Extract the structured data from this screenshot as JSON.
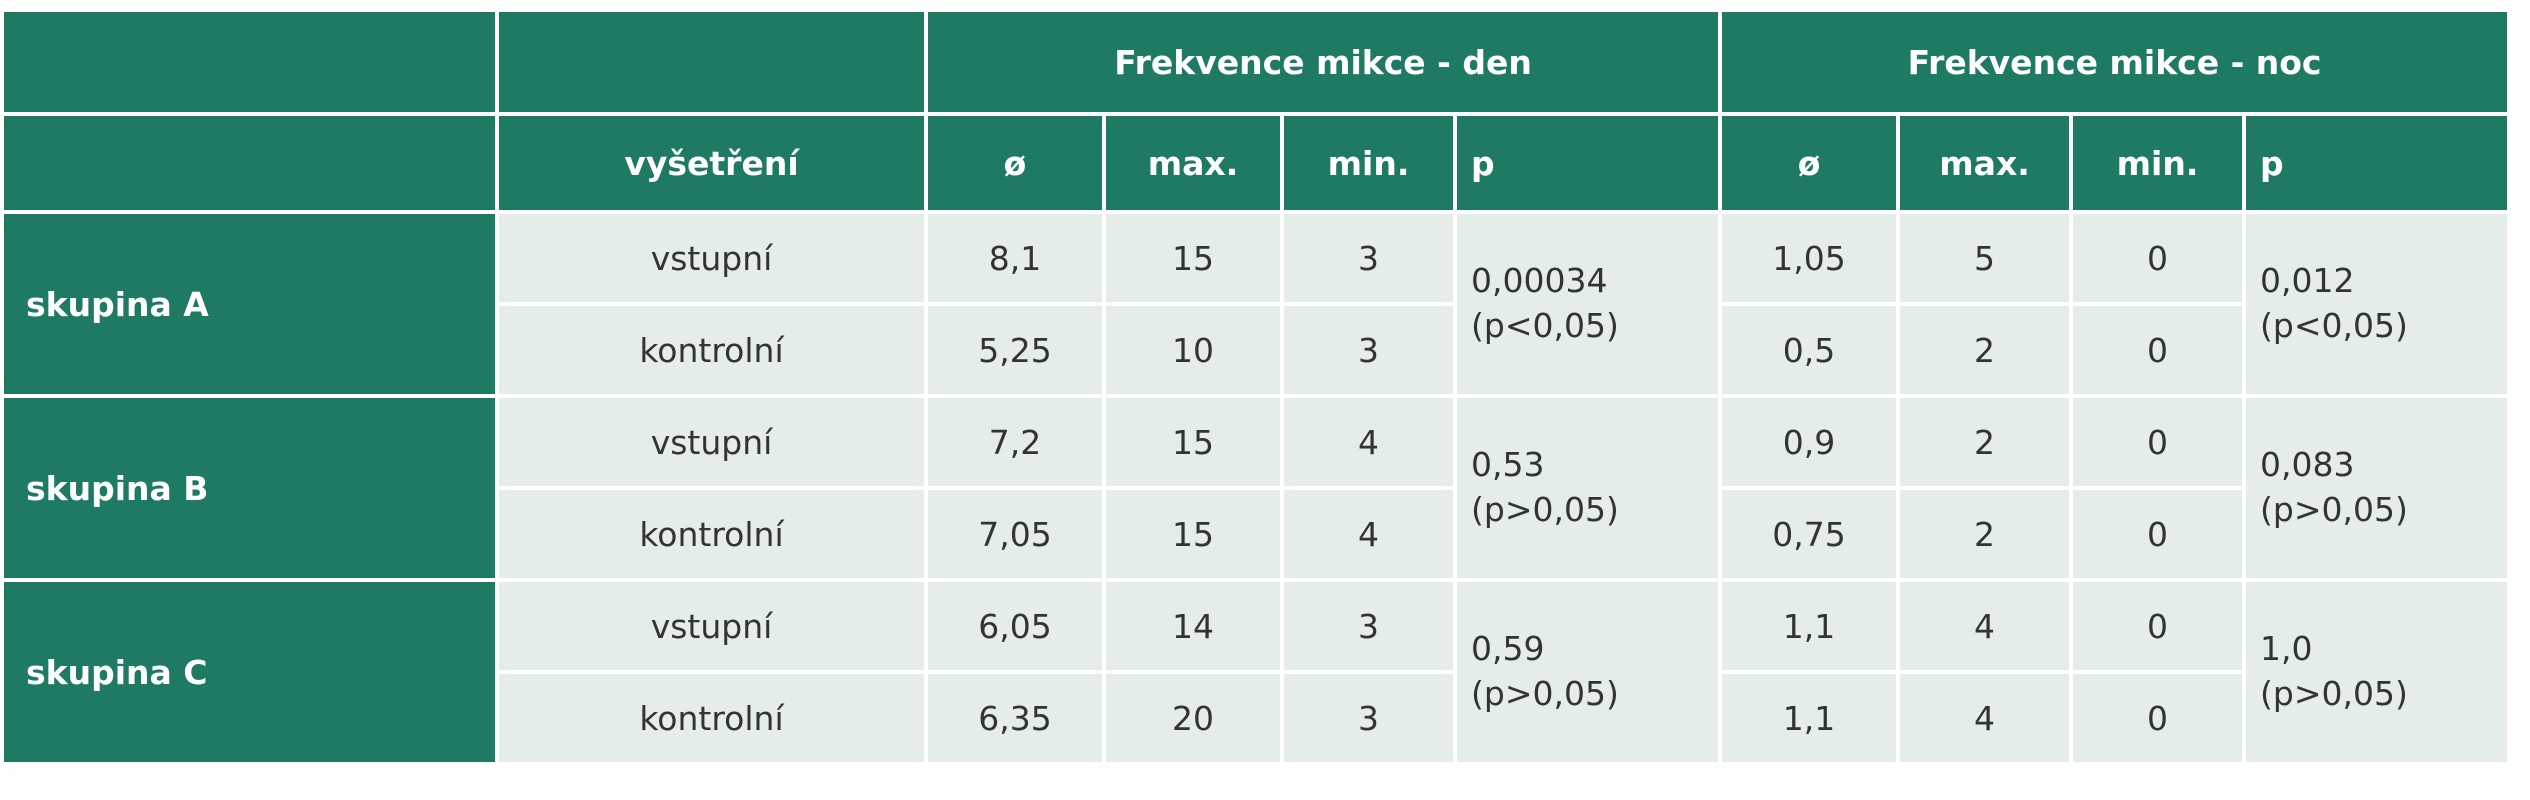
{
  "table": {
    "header": {
      "groups": [
        "Frekvence mikce - den",
        "Frekvence mikce - noc"
      ],
      "columns": [
        "vyšetření",
        "ø",
        "max.",
        "min.",
        "p",
        "ø",
        "max.",
        "min.",
        "p"
      ]
    },
    "groups": [
      {
        "name": "skupina A",
        "rows": [
          {
            "exam": "vstupní",
            "day": [
              "8,1",
              "15",
              "3"
            ],
            "night": [
              "1,05",
              "5",
              "0"
            ]
          },
          {
            "exam": "kontrolní",
            "day": [
              "5,25",
              "10",
              "3"
            ],
            "night": [
              "0,5",
              "2",
              "0"
            ]
          }
        ],
        "p_day": [
          "0,00034",
          "(p<0,05)"
        ],
        "p_night": [
          "0,012",
          "(p<0,05)"
        ]
      },
      {
        "name": "skupina B",
        "rows": [
          {
            "exam": "vstupní",
            "day": [
              "7,2",
              "15",
              "4"
            ],
            "night": [
              "0,9",
              "2",
              "0"
            ]
          },
          {
            "exam": "kontrolní",
            "day": [
              "7,05",
              "15",
              "4"
            ],
            "night": [
              "0,75",
              "2",
              "0"
            ]
          }
        ],
        "p_day": [
          "0,53",
          "(p>0,05)"
        ],
        "p_night": [
          "0,083",
          "(p>0,05)"
        ]
      },
      {
        "name": "skupina C",
        "rows": [
          {
            "exam": "vstupní",
            "day": [
              "6,05",
              "14",
              "3"
            ],
            "night": [
              "1,1",
              "4",
              "0"
            ]
          },
          {
            "exam": "kontrolní",
            "day": [
              "6,35",
              "20",
              "3"
            ],
            "night": [
              "1,1",
              "4",
              "0"
            ]
          }
        ],
        "p_day": [
          "0,59",
          "(p>0,05)"
        ],
        "p_night": [
          "1,0",
          "(p>0,05)"
        ]
      }
    ]
  }
}
